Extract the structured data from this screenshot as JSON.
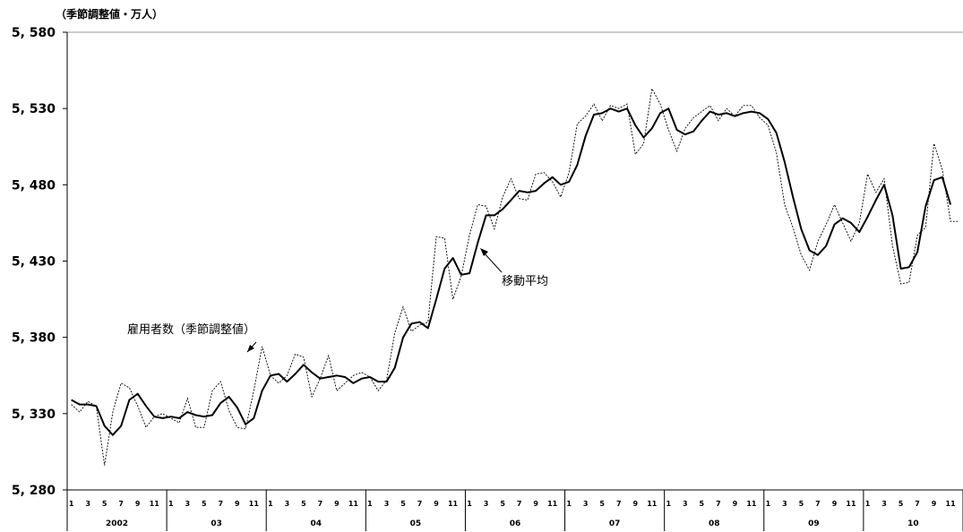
{
  "unit_label": "（季節調整値・万人）",
  "annotations": {
    "series1": "雇用者数（季節調整値）",
    "series2": "移動平均"
  },
  "chart_data": {
    "type": "line",
    "ylim": [
      5280,
      5580
    ],
    "yticks": [
      "5, 280",
      "5, 330",
      "5, 380",
      "5, 430",
      "5, 480",
      "5, 530",
      "5, 580"
    ],
    "year_labels": [
      "2002",
      "03",
      "04",
      "05",
      "06",
      "07",
      "08",
      "09",
      "10"
    ],
    "month_ticks": [
      "1",
      "3",
      "5",
      "7",
      "9",
      "11"
    ],
    "start": "2002-01",
    "series": [
      {
        "name": "雇用者数（季節調整値）",
        "style": "dashed",
        "values": [
          5336,
          5331,
          5338,
          5335,
          5296,
          5331,
          5350,
          5347,
          5335,
          5321,
          5328,
          5330,
          5327,
          5324,
          5340,
          5321,
          5321,
          5345,
          5351,
          5332,
          5321,
          5320,
          5345,
          5374,
          5355,
          5350,
          5355,
          5369,
          5367,
          5341,
          5353,
          5368,
          5345,
          5350,
          5355,
          5357,
          5354,
          5345,
          5352,
          5383,
          5400,
          5384,
          5388,
          5390,
          5446,
          5445,
          5405,
          5420,
          5447,
          5467,
          5466,
          5451,
          5472,
          5484,
          5471,
          5470,
          5487,
          5488,
          5482,
          5472,
          5488,
          5520,
          5525,
          5533,
          5522,
          5532,
          5530,
          5533,
          5500,
          5507,
          5543,
          5533,
          5516,
          5502,
          5517,
          5524,
          5528,
          5532,
          5522,
          5530,
          5525,
          5532,
          5532,
          5524,
          5519,
          5501,
          5467,
          5452,
          5434,
          5424,
          5443,
          5454,
          5467,
          5455,
          5443,
          5455,
          5487,
          5475,
          5484,
          5440,
          5415,
          5416,
          5447,
          5452,
          5507,
          5490,
          5456,
          5456
        ]
      },
      {
        "name": "移動平均",
        "style": "solid",
        "values": [
          5339,
          5336,
          5336,
          5335,
          5322,
          5316,
          5322,
          5339,
          5343,
          5335,
          5328,
          5327,
          5328,
          5327,
          5331,
          5329,
          5328,
          5329,
          5337,
          5341,
          5334,
          5323,
          5327,
          5345,
          5355,
          5356,
          5351,
          5356,
          5362,
          5357,
          5353,
          5354,
          5355,
          5354,
          5350,
          5353,
          5354,
          5351,
          5351,
          5360,
          5380,
          5389,
          5390,
          5386,
          5405,
          5425,
          5432,
          5421,
          5422,
          5442,
          5460,
          5460,
          5464,
          5470,
          5476,
          5475,
          5476,
          5481,
          5485,
          5480,
          5482,
          5493,
          5512,
          5526,
          5527,
          5530,
          5528,
          5530,
          5519,
          5511,
          5517,
          5527,
          5530,
          5516,
          5513,
          5515,
          5522,
          5528,
          5526,
          5527,
          5525,
          5527,
          5528,
          5527,
          5523,
          5514,
          5495,
          5472,
          5451,
          5437,
          5434,
          5440,
          5454,
          5458,
          5455,
          5449,
          5459,
          5470,
          5480,
          5460,
          5425,
          5426,
          5436,
          5466,
          5483,
          5485,
          5467
        ]
      }
    ]
  }
}
